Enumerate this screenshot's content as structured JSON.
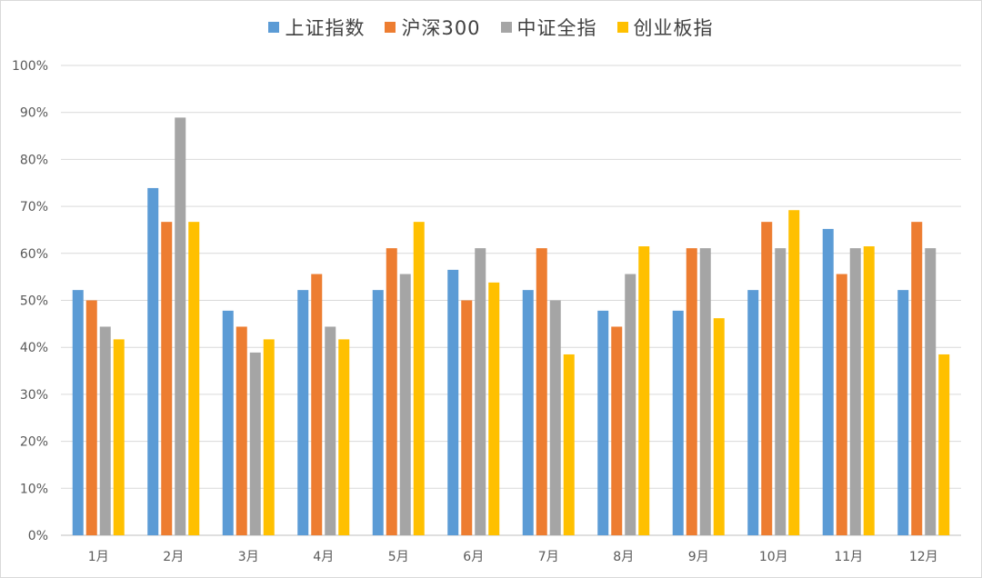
{
  "chart_data": {
    "type": "bar",
    "categories": [
      "1月",
      "2月",
      "3月",
      "4月",
      "5月",
      "6月",
      "7月",
      "8月",
      "9月",
      "10月",
      "11月",
      "12月"
    ],
    "series": [
      {
        "name": "上证指数",
        "color": "#5B9BD5",
        "values": [
          52.2,
          73.9,
          47.8,
          52.2,
          52.2,
          56.5,
          52.2,
          47.8,
          47.8,
          52.2,
          65.2,
          52.2
        ]
      },
      {
        "name": "沪深300",
        "color": "#ED7D31",
        "values": [
          50.0,
          66.7,
          44.4,
          55.6,
          61.1,
          50.0,
          61.1,
          44.4,
          61.1,
          66.7,
          55.6,
          66.7
        ]
      },
      {
        "name": "中证全指",
        "color": "#A5A5A5",
        "values": [
          44.4,
          88.9,
          38.9,
          44.4,
          55.6,
          61.1,
          50.0,
          55.6,
          61.1,
          61.1,
          61.1,
          61.1
        ]
      },
      {
        "name": "创业板指",
        "color": "#FFC000",
        "values": [
          41.7,
          66.7,
          41.7,
          41.7,
          66.7,
          53.8,
          38.5,
          61.5,
          46.2,
          69.2,
          61.5,
          38.5
        ]
      }
    ],
    "yticks": [
      "0%",
      "10%",
      "20%",
      "30%",
      "40%",
      "50%",
      "60%",
      "70%",
      "80%",
      "90%",
      "100%"
    ],
    "ylim": [
      0,
      100
    ],
    "grid": true,
    "legend_position": "top-center"
  }
}
